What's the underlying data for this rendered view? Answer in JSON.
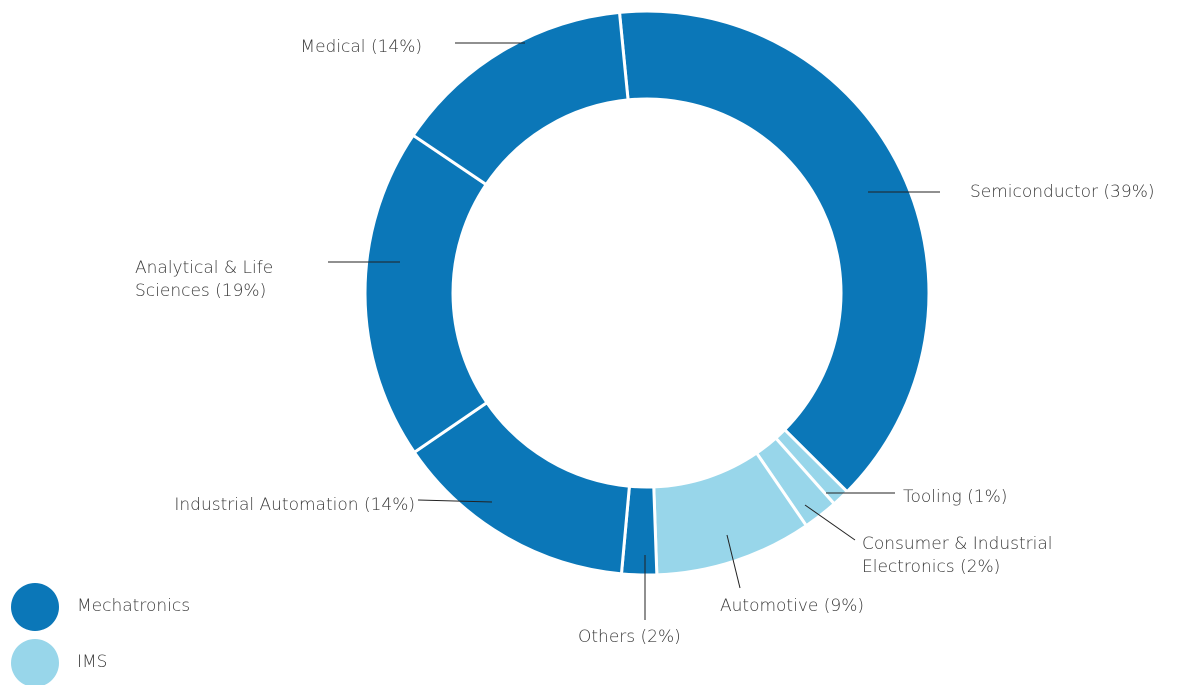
{
  "chart_data": {
    "type": "donut",
    "categories": [
      "Semiconductor (39%)",
      "Tooling (1%)",
      "Consumer & Industrial Electronics (2%)",
      "Automotive (9%)",
      "Others (2%)",
      "Industrial Automation (14%)",
      "Analytical & Life Sciences (19%)",
      "Medical (14%)"
    ],
    "values": [
      39,
      1,
      2,
      9,
      2,
      14,
      19,
      14
    ],
    "colors": [
      "#0b77b8",
      "#98d6ea",
      "#98d6ea",
      "#98d6ea",
      "#0b77b8",
      "#0b77b8",
      "#0b77b8",
      "#0b77b8"
    ],
    "legend": [
      {
        "name": "Mechatronics",
        "color": "#0b77b8"
      },
      {
        "name": "IMS",
        "color": "#98d6ea"
      }
    ]
  }
}
